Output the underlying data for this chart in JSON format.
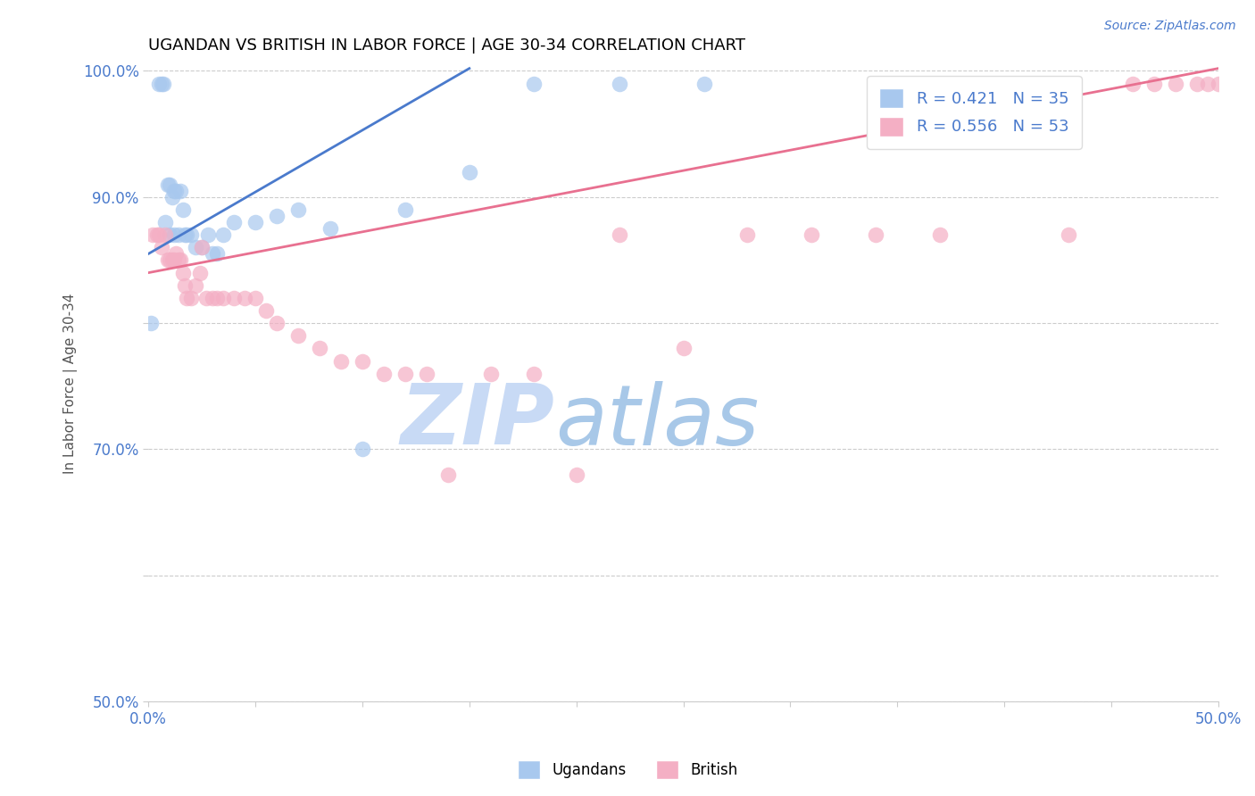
{
  "title": "UGANDAN VS BRITISH IN LABOR FORCE | AGE 30-34 CORRELATION CHART",
  "source": "Source: ZipAtlas.com",
  "ylabel": "In Labor Force | Age 30-34",
  "xlim": [
    0.0,
    0.5
  ],
  "ylim": [
    0.5,
    1.005
  ],
  "xticks": [
    0.0,
    0.05,
    0.1,
    0.15,
    0.2,
    0.25,
    0.3,
    0.35,
    0.4,
    0.45,
    0.5
  ],
  "yticks": [
    0.5,
    0.6,
    0.7,
    0.8,
    0.9,
    1.0
  ],
  "xticklabels": [
    "0.0%",
    "",
    "",
    "",
    "",
    "",
    "",
    "",
    "",
    "",
    "50.0%"
  ],
  "yticklabels": [
    "50.0%",
    "",
    "70.0%",
    "",
    "90.0%",
    "100.0%"
  ],
  "ugandan_R": 0.421,
  "ugandan_N": 35,
  "british_R": 0.556,
  "british_N": 53,
  "ugandan_color": "#a8c8ee",
  "british_color": "#f4afc4",
  "ugandan_line_color": "#4a7acc",
  "british_line_color": "#e87090",
  "title_fontsize": 13,
  "ugandan_x": [
    0.001,
    0.005,
    0.006,
    0.007,
    0.008,
    0.009,
    0.01,
    0.01,
    0.011,
    0.012,
    0.012,
    0.013,
    0.014,
    0.015,
    0.016,
    0.017,
    0.018,
    0.02,
    0.022,
    0.025,
    0.028,
    0.03,
    0.032,
    0.035,
    0.04,
    0.05,
    0.06,
    0.07,
    0.085,
    0.1,
    0.12,
    0.15,
    0.18,
    0.22,
    0.26
  ],
  "ugandan_y": [
    0.8,
    0.99,
    0.99,
    0.99,
    0.88,
    0.91,
    0.91,
    0.87,
    0.9,
    0.905,
    0.87,
    0.905,
    0.87,
    0.905,
    0.89,
    0.87,
    0.87,
    0.87,
    0.86,
    0.86,
    0.87,
    0.855,
    0.855,
    0.87,
    0.88,
    0.88,
    0.885,
    0.89,
    0.875,
    0.7,
    0.89,
    0.92,
    0.99,
    0.99,
    0.99
  ],
  "british_x": [
    0.002,
    0.004,
    0.005,
    0.006,
    0.008,
    0.009,
    0.01,
    0.011,
    0.012,
    0.013,
    0.014,
    0.015,
    0.016,
    0.017,
    0.018,
    0.02,
    0.022,
    0.024,
    0.025,
    0.027,
    0.03,
    0.032,
    0.035,
    0.04,
    0.045,
    0.05,
    0.055,
    0.06,
    0.07,
    0.08,
    0.09,
    0.1,
    0.11,
    0.12,
    0.13,
    0.14,
    0.16,
    0.18,
    0.2,
    0.22,
    0.25,
    0.28,
    0.31,
    0.34,
    0.37,
    0.4,
    0.43,
    0.46,
    0.47,
    0.48,
    0.49,
    0.495,
    0.5
  ],
  "british_y": [
    0.87,
    0.87,
    0.87,
    0.86,
    0.87,
    0.85,
    0.85,
    0.85,
    0.85,
    0.855,
    0.85,
    0.85,
    0.84,
    0.83,
    0.82,
    0.82,
    0.83,
    0.84,
    0.86,
    0.82,
    0.82,
    0.82,
    0.82,
    0.82,
    0.82,
    0.82,
    0.81,
    0.8,
    0.79,
    0.78,
    0.77,
    0.77,
    0.76,
    0.76,
    0.76,
    0.68,
    0.76,
    0.76,
    0.68,
    0.87,
    0.78,
    0.87,
    0.87,
    0.87,
    0.87,
    0.99,
    0.87,
    0.99,
    0.99,
    0.99,
    0.99,
    0.99,
    0.99
  ]
}
